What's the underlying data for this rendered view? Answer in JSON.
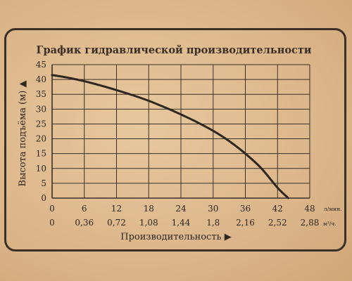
{
  "colors": {
    "paper": "#dcb68a",
    "ink": "#2e2620",
    "grid": "#3a3028"
  },
  "chart_data": {
    "type": "line",
    "title": "График гидравлической производительности",
    "ylabel": "Высота подъёма (м) ▲",
    "xlabel": "Производительность ▶",
    "x_unit_top": "л/мин.",
    "x_unit_bottom": "м³/ч.",
    "xlim": [
      0,
      48
    ],
    "ylim": [
      0,
      45
    ],
    "x_ticks_top": [
      "0",
      "6",
      "12",
      "18",
      "24",
      "30",
      "36",
      "42",
      "48"
    ],
    "x_ticks_bottom": [
      "0",
      "0,36",
      "0,72",
      "1,08",
      "1,44",
      "1,8",
      "2,16",
      "2,52",
      "2,88"
    ],
    "y_ticks": [
      "0",
      "5",
      "10",
      "15",
      "20",
      "25",
      "30",
      "35",
      "40",
      "45"
    ],
    "grid": true,
    "series": [
      {
        "x": [
          0,
          3,
          6,
          9,
          12,
          15,
          18,
          21,
          24,
          27,
          30,
          33,
          36,
          39,
          42,
          44
        ],
        "y": [
          41.5,
          40.6,
          39.4,
          38.0,
          36.4,
          34.7,
          32.8,
          30.6,
          28.2,
          25.6,
          22.7,
          19.2,
          15.0,
          10.0,
          3.5,
          0
        ]
      }
    ]
  }
}
